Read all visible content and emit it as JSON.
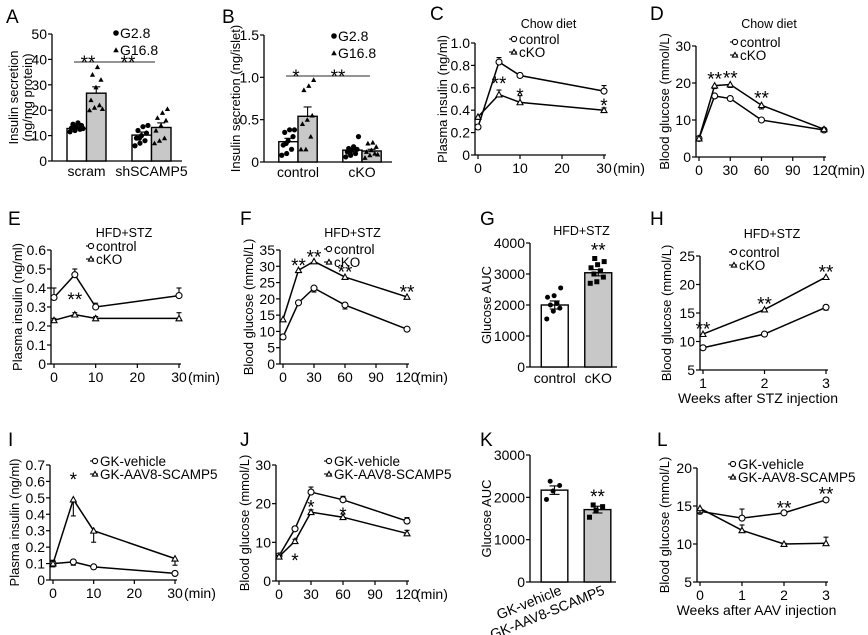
{
  "chart_data": [
    {
      "id": "A",
      "type": "bar",
      "title": "",
      "ylabel": [
        "Insulin secretion",
        "(ng/mg protein)"
      ],
      "ylim": [
        0,
        50
      ],
      "yticks": [
        0,
        10,
        20,
        30,
        40,
        50
      ],
      "categories": [
        "scram",
        "shSCAMP5"
      ],
      "legend": [
        "G2.8",
        "G16.8"
      ],
      "series": [
        {
          "name": "G2.8",
          "values": [
            12.8,
            10.2
          ],
          "sem": [
            0.8,
            1.2
          ],
          "points": [
            [
              11.5,
              12,
              12.5,
              13,
              13.5,
              14,
              14.5,
              15,
              12.8
            ],
            [
              6,
              7,
              8,
              9,
              10,
              11,
              12,
              13.5,
              14,
              9
            ]
          ]
        },
        {
          "name": "G16.8",
          "values": [
            26.7,
            13.2
          ],
          "sem": [
            2.5,
            1.8
          ],
          "points": [
            [
              20,
              21,
              22,
              24,
              29,
              32,
              34,
              37,
              20.5
            ],
            [
              7,
              8,
              9,
              12,
              14,
              16,
              17,
              19,
              20.5
            ]
          ]
        }
      ],
      "significance": [
        {
          "label": "**",
          "between": "scram G2.8 vs G16.8"
        },
        {
          "label": "**",
          "between": "scram G16.8 vs shSCAMP5 G16.8"
        }
      ]
    },
    {
      "id": "B",
      "type": "bar",
      "title": "",
      "ylabel": [
        "Insulin secretion (ng/islet)"
      ],
      "ylim": [
        0,
        1.5
      ],
      "yticks": [
        "0",
        "0.5",
        "1.0",
        "1.5"
      ],
      "categories": [
        "control",
        "cKO"
      ],
      "legend": [
        "G2.8",
        "G16.8"
      ],
      "series": [
        {
          "name": "G2.8",
          "values": [
            0.24,
            0.14
          ],
          "sem": [
            0.04,
            0.02
          ],
          "points": [
            [
              0.08,
              0.1,
              0.15,
              0.2,
              0.25,
              0.3,
              0.35,
              0.38,
              0.38,
              0.22
            ],
            [
              0.06,
              0.08,
              0.1,
              0.12,
              0.14,
              0.15,
              0.16,
              0.18,
              0.3,
              0.1
            ]
          ]
        },
        {
          "name": "G16.8",
          "values": [
            0.54,
            0.13
          ],
          "sem": [
            0.11,
            0.02
          ],
          "points": [
            [
              0.15,
              0.15,
              0.3,
              0.45,
              0.5,
              0.55,
              0.85,
              0.9,
              0.97
            ],
            [
              0.05,
              0.08,
              0.1,
              0.12,
              0.14,
              0.18,
              0.22,
              0.23,
              0.09
            ]
          ]
        }
      ],
      "significance": [
        {
          "label": "*"
        },
        {
          "label": "**"
        }
      ]
    },
    {
      "id": "C",
      "type": "line",
      "title": "Chow diet",
      "ylabel": "Plasma insulin (ng/ml)",
      "xlabel": "(min)",
      "ylim": [
        0,
        1.0
      ],
      "yticks": [
        "0",
        "0.2",
        "0.4",
        "0.6",
        "0.8",
        "1.0"
      ],
      "x": [
        0,
        5,
        10,
        30
      ],
      "xticks": [
        0,
        10,
        20,
        30
      ],
      "series": [
        {
          "name": "control",
          "marker": "circle",
          "values": [
            0.25,
            0.83,
            0.71,
            0.57
          ],
          "err": [
            0.02,
            0.04,
            0.02,
            0.05
          ]
        },
        {
          "name": "cKO",
          "marker": "triangle",
          "values": [
            0.34,
            0.54,
            0.47,
            0.4
          ],
          "err": [
            0.02,
            0.04,
            0.06,
            0.02
          ]
        }
      ],
      "annotations": [
        {
          "x": 5,
          "label": "**"
        },
        {
          "x": 10,
          "label": "*"
        },
        {
          "x": 30,
          "label": "*"
        }
      ]
    },
    {
      "id": "D",
      "type": "line",
      "title": "Chow diet",
      "ylabel": "Blood glucose (mmol/L)",
      "xlabel": "(min)",
      "ylim": [
        0,
        30
      ],
      "yticks": [
        "0",
        "10",
        "20",
        "30"
      ],
      "x": [
        0,
        15,
        30,
        60,
        120
      ],
      "xticks": [
        0,
        30,
        60,
        90,
        120
      ],
      "series": [
        {
          "name": "control",
          "marker": "circle",
          "values": [
            5.0,
            16.5,
            15.8,
            10.0,
            7.3
          ],
          "err": [
            0.3,
            0.5,
            0.4,
            0.4,
            0.3
          ]
        },
        {
          "name": "cKO",
          "marker": "triangle",
          "values": [
            5.0,
            19.3,
            19.6,
            14.0,
            7.5
          ],
          "err": [
            0.3,
            0.8,
            0.8,
            1.0,
            0.3
          ]
        }
      ],
      "annotations": [
        {
          "x": 15,
          "label": "**"
        },
        {
          "x": 30,
          "label": "**"
        },
        {
          "x": 60,
          "label": "**"
        }
      ]
    },
    {
      "id": "E",
      "type": "line",
      "title": "HFD+STZ",
      "ylabel": "Plasma insulin (ng/ml)",
      "xlabel": "(min)",
      "ylim": [
        0,
        0.6
      ],
      "yticks": [
        "0",
        "0.1",
        "0.2",
        "0.3",
        "0.4",
        "0.5",
        "0.6"
      ],
      "x": [
        0,
        5,
        10,
        30
      ],
      "xticks": [
        0,
        10,
        20,
        30
      ],
      "series": [
        {
          "name": "control",
          "marker": "circle",
          "values": [
            0.35,
            0.47,
            0.3,
            0.36
          ],
          "err": [
            0.05,
            0.03,
            0.02,
            0.04
          ]
        },
        {
          "name": "cKO",
          "marker": "triangle",
          "values": [
            0.23,
            0.26,
            0.24,
            0.24
          ],
          "err": [
            0.01,
            0.01,
            0.01,
            0.03
          ]
        }
      ],
      "annotations": [
        {
          "x": 5,
          "label": "**"
        }
      ]
    },
    {
      "id": "F",
      "type": "line",
      "title": "HFD+STZ",
      "ylabel": "Blood glucose (mmol/L)",
      "xlabel": "(min)",
      "ylim": [
        0,
        35
      ],
      "yticks": [
        "0",
        "5",
        "10",
        "15",
        "20",
        "25",
        "30",
        "35"
      ],
      "x": [
        0,
        15,
        30,
        60,
        120
      ],
      "xticks": [
        0,
        30,
        60,
        90,
        120
      ],
      "series": [
        {
          "name": "control",
          "marker": "circle",
          "values": [
            8.3,
            18.8,
            23.3,
            18.1,
            10.7
          ],
          "err": [
            0.7,
            0.5,
            1.2,
            1.2,
            0.6
          ]
        },
        {
          "name": "cKO",
          "marker": "triangle",
          "values": [
            13.7,
            28.8,
            31.5,
            26.7,
            20.6
          ],
          "err": [
            0.6,
            0.4,
            0.3,
            0.5,
            0.4
          ]
        }
      ],
      "annotations": [
        {
          "x": 15,
          "label": "**"
        },
        {
          "x": 30,
          "label": "**"
        },
        {
          "x": 60,
          "label": "**"
        },
        {
          "x": 120,
          "label": "**"
        }
      ]
    },
    {
      "id": "G",
      "type": "bar",
      "title": "HFD+STZ",
      "ylabel": [
        "Glucose AUC"
      ],
      "ylim": [
        0,
        4000
      ],
      "yticks": [
        "0",
        "1000",
        "2000",
        "3000",
        "4000"
      ],
      "categories": [
        "control",
        "cKO"
      ],
      "values": [
        2000,
        3040
      ],
      "sem": [
        130,
        100
      ],
      "points": [
        [
          1550,
          1800,
          1900,
          2000,
          2050,
          2250,
          2300,
          2550
        ],
        [
          2700,
          2750,
          2900,
          3000,
          3100,
          3200,
          3300,
          3400,
          3500
        ]
      ],
      "annotations": [
        {
          "category": "cKO",
          "label": "**"
        }
      ]
    },
    {
      "id": "H",
      "type": "line",
      "title": "HFD+STZ",
      "ylabel": "Blood glucose (mmol/L)",
      "xlabel": "Weeks after STZ injection",
      "ylim": [
        5,
        25
      ],
      "yticks": [
        "5",
        "10",
        "15",
        "20",
        "25"
      ],
      "x": [
        1,
        2,
        3
      ],
      "xticks": [
        1,
        2,
        3
      ],
      "series": [
        {
          "name": "control",
          "marker": "circle",
          "values": [
            8.9,
            11.3,
            16.0
          ],
          "err": [
            0.2,
            0.3,
            0.5
          ]
        },
        {
          "name": "cKO",
          "marker": "triangle",
          "values": [
            11.3,
            15.6,
            21.3
          ],
          "err": [
            0.3,
            0.4,
            0.3
          ]
        }
      ],
      "annotations": [
        {
          "x": 1,
          "label": "**"
        },
        {
          "x": 2,
          "label": "**"
        },
        {
          "x": 3,
          "label": "**"
        }
      ]
    },
    {
      "id": "I",
      "type": "line",
      "title": "",
      "ylabel": "Plasma insulin (ng/ml)",
      "xlabel": "(min)",
      "ylim": [
        0,
        0.7
      ],
      "yticks": [
        "0",
        "0.1",
        "0.2",
        "0.3",
        "0.4",
        "0.5",
        "0.6",
        "0.7"
      ],
      "x": [
        0,
        5,
        10,
        30
      ],
      "xticks": [
        0,
        10,
        20,
        30
      ],
      "series": [
        {
          "name": "GK-vehicle",
          "marker": "circle",
          "values": [
            0.1,
            0.11,
            0.08,
            0.04
          ],
          "err": [
            0.02,
            0.02,
            0.01,
            0.01
          ]
        },
        {
          "name": "GK-AAV8-SCAMP5",
          "marker": "triangle",
          "values": [
            0.1,
            0.49,
            0.3,
            0.13
          ],
          "err": [
            0.02,
            0.1,
            0.07,
            0.04
          ]
        }
      ],
      "annotations": [
        {
          "x": 5,
          "label": "*"
        }
      ]
    },
    {
      "id": "J",
      "type": "line",
      "title": "",
      "ylabel": "Blood glucose (mmol/L)",
      "xlabel": "(min)",
      "ylim": [
        0,
        30
      ],
      "yticks": [
        "0",
        "10",
        "20",
        "30"
      ],
      "x": [
        0,
        15,
        30,
        60,
        120
      ],
      "xticks": [
        0,
        30,
        60,
        90,
        120
      ],
      "series": [
        {
          "name": "GK-vehicle",
          "marker": "circle",
          "values": [
            6.5,
            13.5,
            23.0,
            21.0,
            15.5
          ],
          "err": [
            0.3,
            0.6,
            1.3,
            0.9,
            0.9
          ]
        },
        {
          "name": "GK-AAV8-SCAMP5",
          "marker": "triangle",
          "values": [
            6.3,
            10.3,
            17.8,
            16.5,
            12.3
          ],
          "err": [
            0.3,
            0.5,
            0.6,
            0.8,
            0.8
          ]
        }
      ],
      "annotations": [
        {
          "x": 15,
          "label": "*"
        },
        {
          "x": 30,
          "label": "*"
        },
        {
          "x": 60,
          "label": "*"
        }
      ]
    },
    {
      "id": "K",
      "type": "bar",
      "title": "",
      "ylabel": [
        "Glucose AUC"
      ],
      "ylim": [
        0,
        3000
      ],
      "yticks": [
        "0",
        "1000",
        "2000",
        "3000"
      ],
      "categories": [
        "GK-vehicle",
        "GK-AAV8-SCAMP5"
      ],
      "values": [
        2170,
        1710
      ],
      "sem": [
        100,
        80
      ],
      "points": [
        [
          1950,
          2150,
          2280,
          2380
        ],
        [
          1530,
          1700,
          1780,
          1820
        ]
      ],
      "annotations": [
        {
          "category": "GK-AAV8-SCAMP5",
          "label": "**"
        }
      ]
    },
    {
      "id": "L",
      "type": "line",
      "title": "",
      "ylabel": "Blood glucose (mmol/L)",
      "xlabel": "Weeks after AAV injection",
      "ylim": [
        5,
        20
      ],
      "yticks": [
        "5",
        "10",
        "15",
        "20"
      ],
      "x": [
        0,
        1,
        2,
        3
      ],
      "xticks": [
        0,
        1,
        2,
        3
      ],
      "series": [
        {
          "name": "GK-vehicle",
          "marker": "circle",
          "values": [
            14.3,
            13.4,
            14.1,
            15.8
          ],
          "err": [
            0.3,
            1.2,
            0.2,
            0.3
          ]
        },
        {
          "name": "GK-AAV8-SCAMP5",
          "marker": "triangle",
          "values": [
            14.7,
            11.8,
            10.0,
            10.1
          ],
          "err": [
            0.6,
            0.7,
            0.1,
            0.8
          ]
        }
      ],
      "annotations": [
        {
          "x": 2,
          "label": "**"
        },
        {
          "x": 3,
          "label": "**"
        }
      ]
    }
  ]
}
